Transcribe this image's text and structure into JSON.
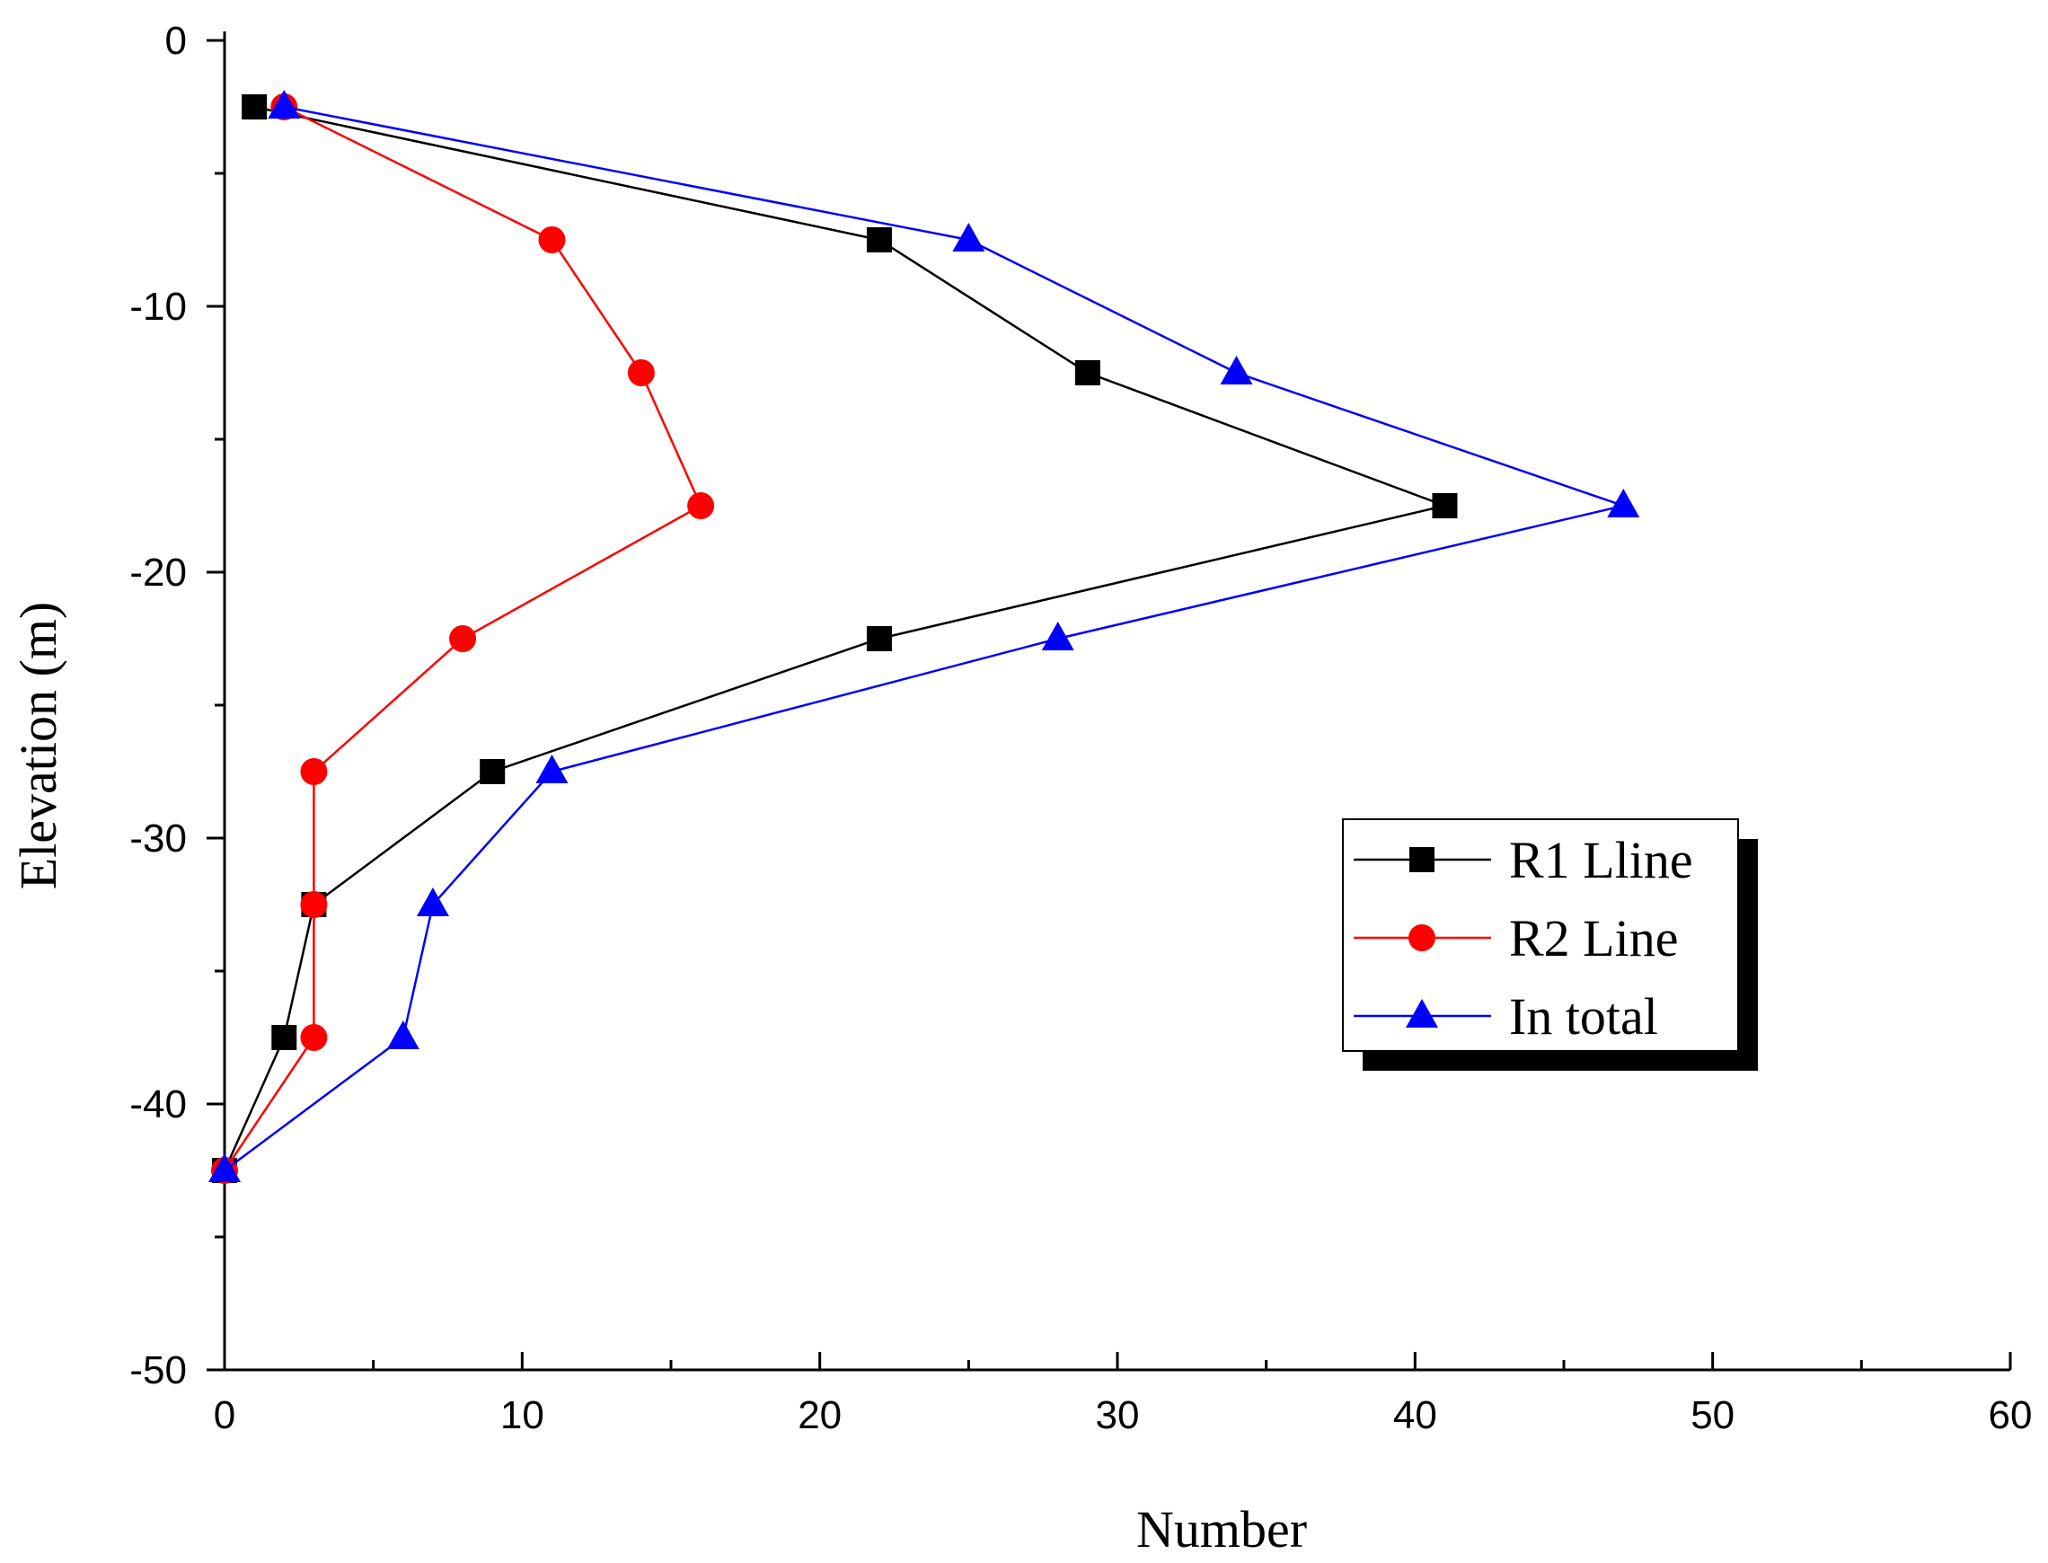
{
  "chart_data": {
    "type": "line",
    "title": "",
    "xlabel": "Number",
    "ylabel": "Elevation (m)",
    "xlim": [
      0,
      60
    ],
    "ylim": [
      -50,
      0
    ],
    "xticks": [
      0,
      10,
      20,
      30,
      40,
      50,
      60
    ],
    "yticks": [
      0,
      -10,
      -20,
      -30,
      -40,
      -50
    ],
    "grid": false,
    "legend_position": "right-middle",
    "series": [
      {
        "name": "R1 Lline",
        "color": "#000000",
        "marker": "square",
        "points": [
          {
            "x": 1,
            "y": -2.5
          },
          {
            "x": 22,
            "y": -7.5
          },
          {
            "x": 29,
            "y": -12.5
          },
          {
            "x": 41,
            "y": -17.5
          },
          {
            "x": 22,
            "y": -22.5
          },
          {
            "x": 9,
            "y": -27.5
          },
          {
            "x": 3,
            "y": -32.5
          },
          {
            "x": 2,
            "y": -37.5
          },
          {
            "x": 0,
            "y": -42.5
          }
        ]
      },
      {
        "name": "R2 Line",
        "color": "#ff0000",
        "marker": "circle",
        "points": [
          {
            "x": 2,
            "y": -2.5
          },
          {
            "x": 11,
            "y": -7.5
          },
          {
            "x": 14,
            "y": -12.5
          },
          {
            "x": 16,
            "y": -17.5
          },
          {
            "x": 8,
            "y": -22.5
          },
          {
            "x": 3,
            "y": -27.5
          },
          {
            "x": 3,
            "y": -32.5
          },
          {
            "x": 3,
            "y": -37.5
          },
          {
            "x": 0,
            "y": -42.5
          }
        ]
      },
      {
        "name": "In total",
        "color": "#0000ff",
        "marker": "triangle",
        "points": [
          {
            "x": 2,
            "y": -2.5
          },
          {
            "x": 25,
            "y": -7.5
          },
          {
            "x": 34,
            "y": -12.5
          },
          {
            "x": 47,
            "y": -17.5
          },
          {
            "x": 28,
            "y": -22.5
          },
          {
            "x": 11,
            "y": -27.5
          },
          {
            "x": 7,
            "y": -32.5
          },
          {
            "x": 6,
            "y": -37.5
          },
          {
            "x": 0,
            "y": -42.5
          }
        ]
      }
    ]
  }
}
